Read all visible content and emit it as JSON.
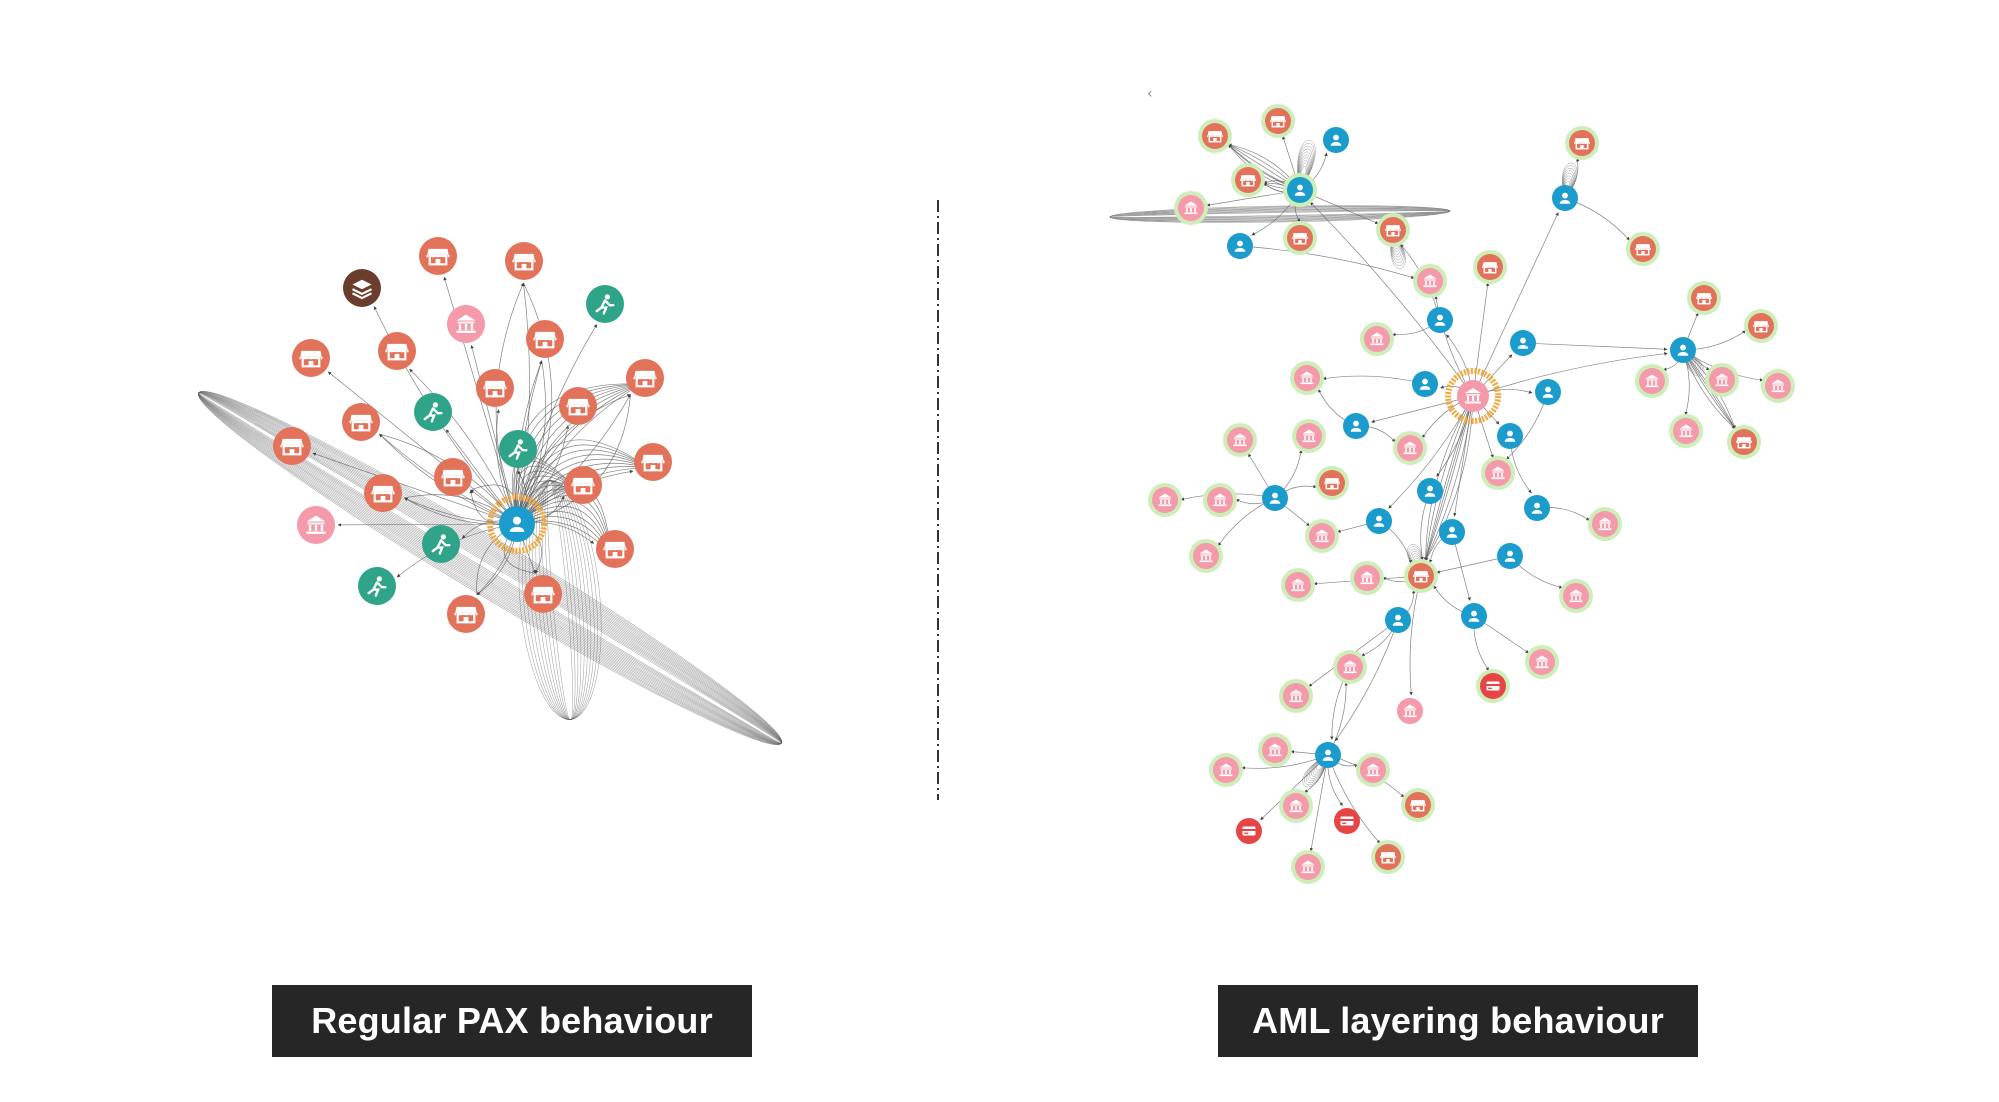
{
  "captions": {
    "left": "Regular PAX behaviour",
    "right": "AML layering behaviour"
  },
  "node_types": {
    "user": {
      "fill": "#1b9ccc",
      "icon": "person-icon"
    },
    "merchant": {
      "fill": "#e2735a",
      "icon": "storefront-icon"
    },
    "bank": {
      "fill": "#f49aaa",
      "icon": "bank-icon"
    },
    "rider": {
      "fill": "#2fa488",
      "icon": "rider-icon"
    },
    "layer": {
      "fill": "#6b3d2d",
      "icon": "stack-icon"
    },
    "card": {
      "fill": "#e64545",
      "icon": "card-icon"
    }
  },
  "colors": {
    "edge": "#5a5a5a",
    "center_halo": "#f5a83d",
    "node_halo": "#cdeeb9",
    "divider": "#333333"
  }
}
